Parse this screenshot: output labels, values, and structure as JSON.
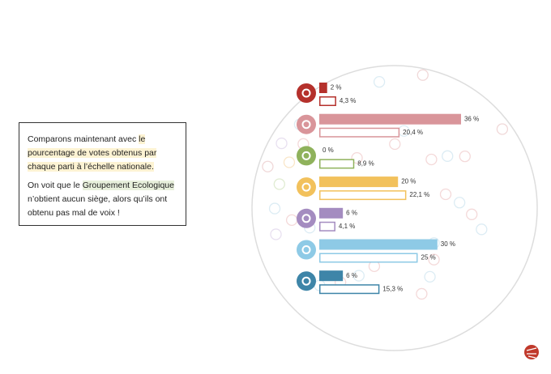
{
  "text_box": {
    "paragraphs": [
      [
        "Comparons maintenant avec ",
        "le pourcentage de votes obtenus par chaque parti à l’échelle nationale."
      ],
      [
        "On voit que le ",
        "Groupement Ecologique",
        " n’obtient aucun siège, alors qu’ils ont obtenu pas mal de voix !"
      ]
    ]
  },
  "chart_data": {
    "type": "bar",
    "categories": [
      null,
      null,
      null,
      null,
      null,
      null,
      null
    ],
    "colors": [
      "#b5312c",
      "#d9959a",
      "#8fb25c",
      "#f2c15c",
      "#a48cc0",
      "#8ecae6",
      "#3e85a8"
    ],
    "series": [
      {
        "style": "fill",
        "values": [
          2,
          36,
          0,
          20,
          6,
          30,
          6
        ],
        "value_labels": [
          "2 %",
          "36 %",
          "0 %",
          "20 %",
          "6 %",
          "30 %",
          "6 %"
        ]
      },
      {
        "style": "outline",
        "values": [
          4.3,
          20.4,
          8.9,
          22.1,
          4.1,
          25,
          15.3
        ],
        "value_labels": [
          "4,3 %",
          "20,4 %",
          "8,9 %",
          "22,1 %",
          "4,1 %",
          "25 %",
          "15,3 %"
        ]
      }
    ]
  }
}
